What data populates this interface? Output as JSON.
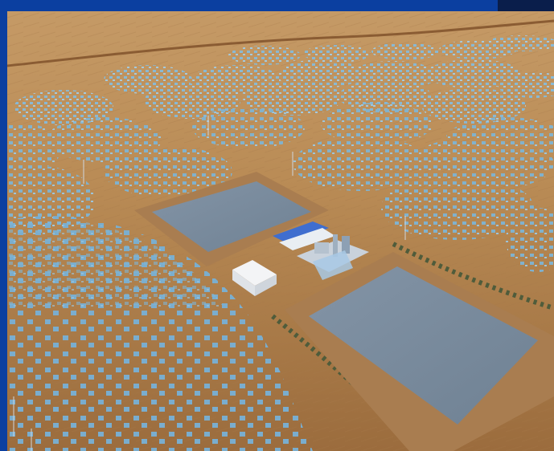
{
  "image": {
    "subject": "aerial-rendering-solar-thermal-plant",
    "colors": {
      "frame": "#0b3fa0",
      "corner_block": "#0a1e4b",
      "terrain_light": "#b98b55",
      "terrain_dark": "#8d5f34",
      "pond_surface": "#7b8da0",
      "pond_border": "#a97d50",
      "heliostat": "#7fb4d3",
      "building": "#f3f4f6",
      "tree": "#4f5c3b"
    }
  }
}
